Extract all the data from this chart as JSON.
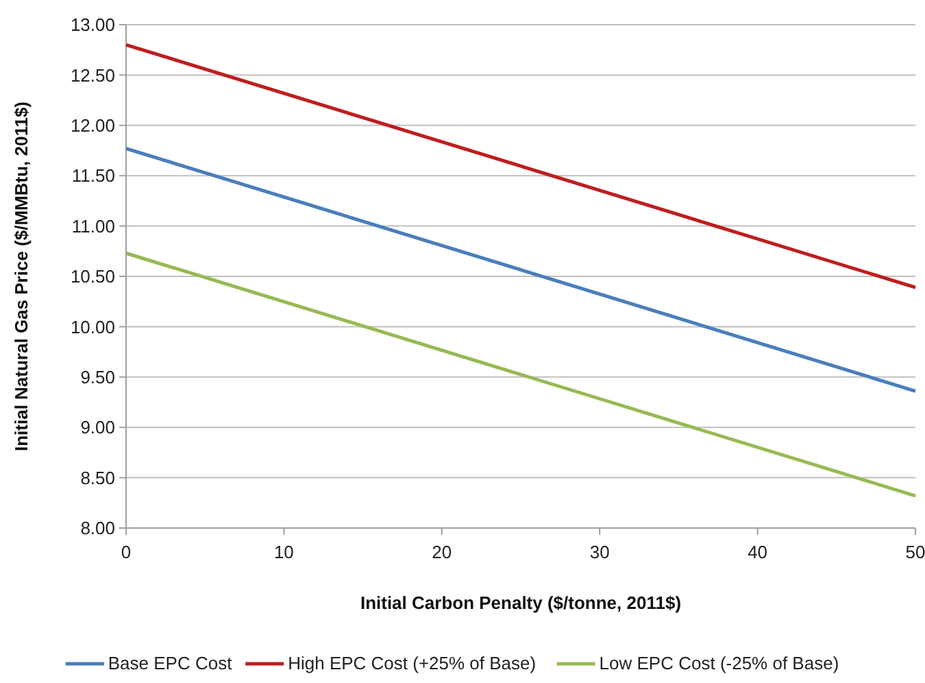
{
  "chart_data": {
    "type": "line",
    "xlabel": "Initial Carbon Penalty ($/tonne, 2011$)",
    "ylabel": "Initial Natural Gas Price ($/MMBtu, 2011$)",
    "x": [
      0,
      50
    ],
    "series": [
      {
        "name": "Base EPC Cost",
        "color": "#4a7ebb",
        "values": [
          11.77,
          9.36
        ]
      },
      {
        "name": "High EPC Cost (+25% of Base)",
        "color": "#be1e1e",
        "values": [
          12.8,
          10.39
        ]
      },
      {
        "name": "Low EPC Cost (-25% of Base)",
        "color": "#98b954",
        "values": [
          10.73,
          8.32
        ]
      }
    ],
    "xlim": [
      0,
      50
    ],
    "xticks": [
      0,
      10,
      20,
      30,
      40,
      50
    ],
    "ylim": [
      8,
      13
    ],
    "yticks": [
      {
        "value": 8,
        "label": "8.00"
      },
      {
        "value": 8.5,
        "label": "8.50"
      },
      {
        "value": 9,
        "label": "9.00"
      },
      {
        "value": 9.5,
        "label": "9.50"
      },
      {
        "value": 10,
        "label": "10.00"
      },
      {
        "value": 10.5,
        "label": "10.50"
      },
      {
        "value": 11,
        "label": "11.00"
      },
      {
        "value": 11.5,
        "label": "11.50"
      },
      {
        "value": 12,
        "label": "12.00"
      },
      {
        "value": 12.5,
        "label": "12.50"
      },
      {
        "value": 13,
        "label": "13.00"
      }
    ],
    "grid": "y",
    "legend": "bottom",
    "marker": "none",
    "line_style": "solid"
  }
}
